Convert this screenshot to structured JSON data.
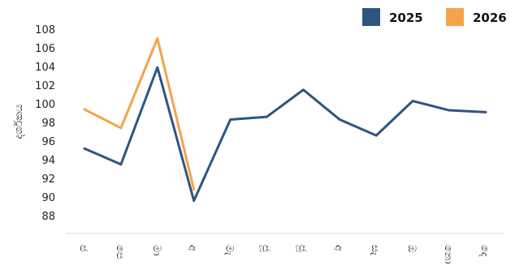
{
  "chart_data": {
    "type": "line",
    "title": "",
    "xlabel": "",
    "ylabel": "දර්ශකය",
    "categories": [
      "ජ",
      "පෙ",
      "මා",
      "අ",
      "මැ",
      "ජූ",
      "ජූ",
      "අ",
      "සැ",
      "ඔ",
      "නො",
      "දෙ"
    ],
    "ylim": [
      86,
      110
    ],
    "yticks": [
      88,
      90,
      92,
      94,
      96,
      98,
      100,
      102,
      104,
      106,
      108
    ],
    "grid": false,
    "legend_position": "top-right",
    "series": [
      {
        "name": "2025",
        "color": "#2e5580",
        "values": [
          95.2,
          93.5,
          103.9,
          89.6,
          98.3,
          98.6,
          101.5,
          98.3,
          96.6,
          100.3,
          99.3,
          99.1
        ]
      },
      {
        "name": "2026",
        "color": "#f5a34a",
        "values": [
          99.4,
          97.4,
          107.0,
          90.8,
          null,
          null,
          null,
          null,
          null,
          null,
          null,
          null
        ]
      }
    ]
  }
}
